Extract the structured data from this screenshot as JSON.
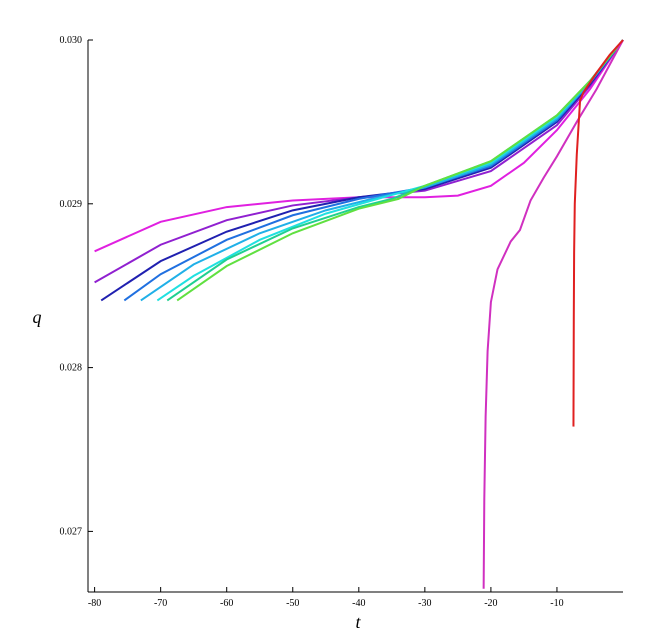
{
  "chart_data": {
    "type": "line",
    "x_label": "t",
    "y_label": "q",
    "xlim": [
      -81,
      0
    ],
    "ylim": [
      0.02663,
      0.03
    ],
    "xticks": [
      -80,
      -70,
      -60,
      -50,
      -40,
      -30,
      -20,
      -10
    ],
    "yticks": [
      0.027,
      0.028,
      0.029,
      {
        "value": 0.03,
        "label": "0.030"
      }
    ],
    "series": [
      {
        "color": "#e020e0",
        "x": [
          -80,
          -70,
          -60,
          -50,
          -40,
          -35,
          -30,
          -25,
          -20,
          -15,
          -10,
          -5,
          0
        ],
        "values": [
          0.02871,
          0.02889,
          0.02898,
          0.02902,
          0.02904,
          0.02904,
          0.02904,
          0.02905,
          0.02911,
          0.02925,
          0.02945,
          0.0297,
          0.03
        ]
      },
      {
        "color": "#9020d0",
        "x": [
          -80,
          -70,
          -60,
          -50,
          -40,
          -30,
          -20,
          -10,
          -5,
          0
        ],
        "values": [
          0.02852,
          0.02875,
          0.0289,
          0.02899,
          0.02904,
          0.02908,
          0.0292,
          0.02948,
          0.02972,
          0.03
        ]
      },
      {
        "color": "#2020b0",
        "x": [
          -79,
          -70,
          -60,
          -50,
          -40,
          -30,
          -20,
          -10,
          -5,
          0
        ],
        "values": [
          0.02841,
          0.02865,
          0.02883,
          0.02896,
          0.02904,
          0.02909,
          0.02922,
          0.0295,
          0.02973,
          0.03
        ]
      },
      {
        "color": "#2070e0",
        "x": [
          -75.5,
          -70,
          -60,
          -50,
          -40,
          -30,
          -20,
          -10,
          -5,
          0
        ],
        "values": [
          0.02841,
          0.02857,
          0.02878,
          0.02893,
          0.02903,
          0.0291,
          0.02923,
          0.02951,
          0.02974,
          0.03
        ]
      },
      {
        "color": "#20b0e8",
        "x": [
          -73,
          -65,
          -55,
          -45,
          -38,
          -30,
          -20,
          -10,
          -5,
          0
        ],
        "values": [
          0.02841,
          0.02863,
          0.02882,
          0.02896,
          0.02903,
          0.0291,
          0.02924,
          0.02952,
          0.02974,
          0.03
        ]
      },
      {
        "color": "#20e0e0",
        "x": [
          -70.5,
          -65,
          -55,
          -45,
          -38,
          -30,
          -20,
          -10,
          -5,
          0
        ],
        "values": [
          0.02841,
          0.02856,
          0.02878,
          0.02894,
          0.02902,
          0.02911,
          0.02925,
          0.02953,
          0.02975,
          0.03
        ]
      },
      {
        "color": "#20d090",
        "x": [
          -69,
          -60,
          -50,
          -40,
          -35,
          -30,
          -20,
          -10,
          -5,
          0
        ],
        "values": [
          0.02841,
          0.02866,
          0.02885,
          0.02898,
          0.02903,
          0.02911,
          0.02926,
          0.02954,
          0.02975,
          0.03
        ]
      },
      {
        "color": "#60e040",
        "x": [
          -67.5,
          -60,
          -50,
          -40,
          -34,
          -30,
          -20,
          -10,
          -5,
          0
        ],
        "values": [
          0.02841,
          0.02862,
          0.02882,
          0.02897,
          0.02903,
          0.02911,
          0.02926,
          0.02954,
          0.02975,
          0.03
        ]
      },
      {
        "color": "#d030c0",
        "x": [
          -21.1,
          -21,
          -20.8,
          -20.5,
          -20,
          -19,
          -17,
          -15.6,
          -14,
          -12,
          -10,
          -7,
          -4,
          0
        ],
        "values": [
          0.02665,
          0.0272,
          0.0277,
          0.0281,
          0.0284,
          0.0286,
          0.02877,
          0.02884,
          0.02902,
          0.02916,
          0.02929,
          0.0295,
          0.0297,
          0.03
        ]
      },
      {
        "color": "#e02020",
        "x": [
          -7.5,
          -7.45,
          -7.4,
          -7.3,
          -7,
          -6.5,
          -6,
          -5,
          -4,
          -2,
          0
        ],
        "values": [
          0.02764,
          0.0283,
          0.0287,
          0.029,
          0.0293,
          0.02963,
          0.02968,
          0.02974,
          0.0298,
          0.02991,
          0.03
        ]
      }
    ]
  }
}
